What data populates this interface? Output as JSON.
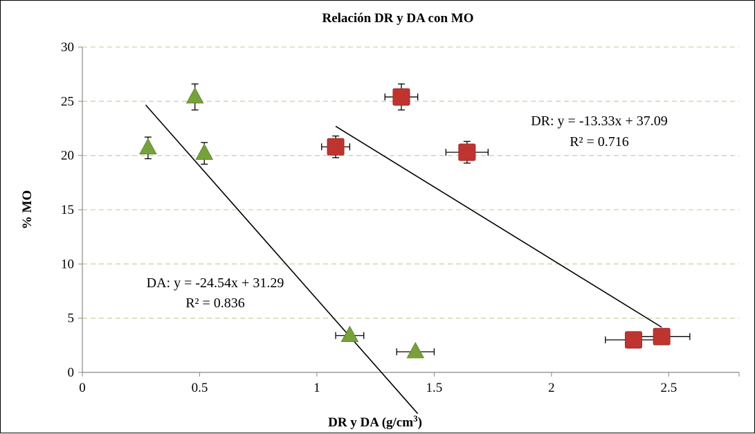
{
  "chart_data": {
    "type": "scatter",
    "title": "Relación DR y DA con MO",
    "xlabel_main": "DR y DA  (g/cm",
    "xlabel_sup": "3",
    "xlabel_end": ")",
    "ylabel": "% MO",
    "xlim": [
      0,
      2.8
    ],
    "ylim": [
      0,
      30
    ],
    "x_ticks": [
      "0",
      "0.5",
      "1",
      "1.5",
      "2",
      "2.5"
    ],
    "x_tick_values": [
      0,
      0.5,
      1,
      1.5,
      2,
      2.5
    ],
    "y_ticks": [
      "0",
      "5",
      "10",
      "15",
      "20",
      "25",
      "30"
    ],
    "y_tick_values": [
      0,
      5,
      10,
      15,
      20,
      25,
      30
    ],
    "grid": "horizontal dashed",
    "series": [
      {
        "marker": "triangle",
        "color": "#77a23a",
        "points": [
          {
            "x": 0.28,
            "y": 20.7,
            "yerr": 1.0
          },
          {
            "x": 0.48,
            "y": 25.4,
            "yerr": 1.2
          },
          {
            "x": 0.52,
            "y": 20.2,
            "yerr": 1.0
          },
          {
            "x": 1.14,
            "y": 3.4,
            "xerr": 0.06
          },
          {
            "x": 1.42,
            "y": 1.9,
            "xerr": 0.08
          }
        ],
        "trendline": {
          "slope": -24.54,
          "intercept": 31.29,
          "x_range": [
            0.27,
            1.43
          ]
        },
        "equation": "DA: y = -24.54x + 31.29",
        "r2": "R² = 0.836"
      },
      {
        "marker": "square",
        "color": "#c0342f",
        "points": [
          {
            "x": 1.08,
            "y": 20.8,
            "xerr": 0.06,
            "yerr": 1.0
          },
          {
            "x": 1.36,
            "y": 25.4,
            "xerr": 0.07,
            "yerr": 1.2
          },
          {
            "x": 1.64,
            "y": 20.3,
            "xerr": 0.09,
            "yerr": 1.0
          },
          {
            "x": 2.35,
            "y": 3.0,
            "xerr": 0.12
          },
          {
            "x": 2.47,
            "y": 3.3,
            "xerr": 0.12
          }
        ],
        "trendline": {
          "slope": -13.33,
          "intercept": 37.09,
          "x_range": [
            1.08,
            2.47
          ]
        },
        "equation": "DR: y = -13.33x + 37.09",
        "r2": "R² = 0.716"
      }
    ]
  }
}
